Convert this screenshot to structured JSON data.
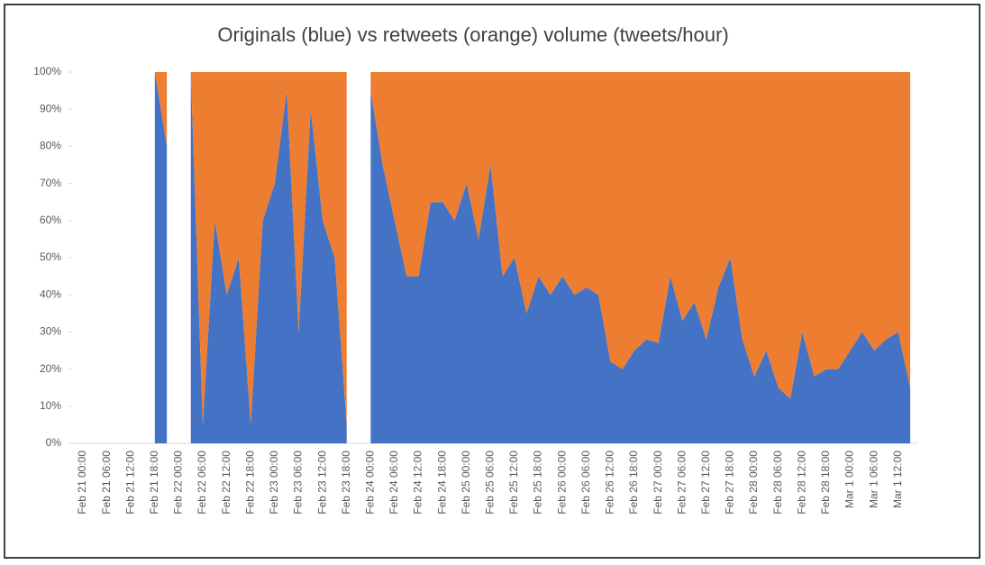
{
  "chart_data": {
    "type": "stacked_area_percent",
    "title": "Originals (blue) vs retweets (orange) volume (tweets/hour)",
    "categories": [
      "Feb 21 00:00",
      null,
      "Feb 21 06:00",
      null,
      "Feb 21 12:00",
      null,
      "Feb 21 18:00",
      null,
      "Feb 22 00:00",
      null,
      "Feb 22 06:00",
      null,
      "Feb 22 12:00",
      null,
      "Feb 22 18:00",
      null,
      "Feb 23 00:00",
      null,
      "Feb 23 06:00",
      null,
      "Feb 23 12:00",
      null,
      "Feb 23 18:00",
      null,
      "Feb 24 00:00",
      null,
      "Feb 24 06:00",
      null,
      "Feb 24 12:00",
      null,
      "Feb 24 18:00",
      null,
      "Feb 25 00:00",
      null,
      "Feb 25 06:00",
      null,
      "Feb 25 12:00",
      null,
      "Feb 25 18:00",
      null,
      "Feb 26 00:00",
      null,
      "Feb 26 06:00",
      null,
      "Feb 26 12:00",
      null,
      "Feb 26 18:00",
      null,
      "Feb 27 00:00",
      null,
      "Feb 27 06:00",
      null,
      "Feb 27 12:00",
      null,
      "Feb 27 18:00",
      null,
      "Feb 28 00:00",
      null,
      "Feb 28 06:00",
      null,
      "Feb 28 12:00",
      null,
      "Feb 28 18:00",
      null,
      "Mar 1 00:00",
      null,
      "Mar 1 06:00",
      null,
      "Mar 1 12:00",
      null
    ],
    "series": [
      {
        "name": "Originals",
        "color": "#4472c4",
        "values": [
          null,
          null,
          null,
          null,
          null,
          null,
          100,
          80,
          null,
          100,
          5,
          60,
          40,
          50,
          5,
          60,
          70,
          95,
          30,
          90,
          60,
          50,
          5,
          null,
          95,
          75,
          60,
          45,
          45,
          65,
          65,
          60,
          70,
          55,
          75,
          45,
          50,
          35,
          45,
          40,
          45,
          40,
          42,
          40,
          22,
          20,
          25,
          28,
          27,
          45,
          33,
          38,
          28,
          42,
          50,
          28,
          18,
          25,
          15,
          12,
          30,
          18,
          20,
          20,
          25,
          30,
          25,
          28,
          30,
          15
        ]
      },
      {
        "name": "Retweets",
        "color": "#ed7d31",
        "values": [
          null,
          null,
          null,
          null,
          null,
          null,
          0,
          20,
          null,
          0,
          95,
          40,
          60,
          50,
          95,
          40,
          30,
          5,
          70,
          10,
          40,
          50,
          95,
          null,
          5,
          25,
          40,
          55,
          55,
          35,
          35,
          40,
          30,
          45,
          25,
          55,
          50,
          65,
          55,
          60,
          55,
          60,
          58,
          60,
          78,
          80,
          75,
          72,
          73,
          55,
          67,
          62,
          72,
          58,
          50,
          72,
          82,
          75,
          85,
          88,
          70,
          82,
          80,
          80,
          75,
          70,
          75,
          72,
          70,
          85
        ]
      }
    ],
    "ylim": [
      0,
      100
    ],
    "yticks": [
      {
        "value": 0,
        "label": "0%"
      },
      {
        "value": 10,
        "label": "10%"
      },
      {
        "value": 20,
        "label": "20%"
      },
      {
        "value": 30,
        "label": "30%"
      },
      {
        "value": 40,
        "label": "40%"
      },
      {
        "value": 50,
        "label": "50%"
      },
      {
        "value": 60,
        "label": "60%"
      },
      {
        "value": 70,
        "label": "70%"
      },
      {
        "value": 80,
        "label": "80%"
      },
      {
        "value": 90,
        "label": "90%"
      },
      {
        "value": 100,
        "label": "100%"
      }
    ]
  }
}
